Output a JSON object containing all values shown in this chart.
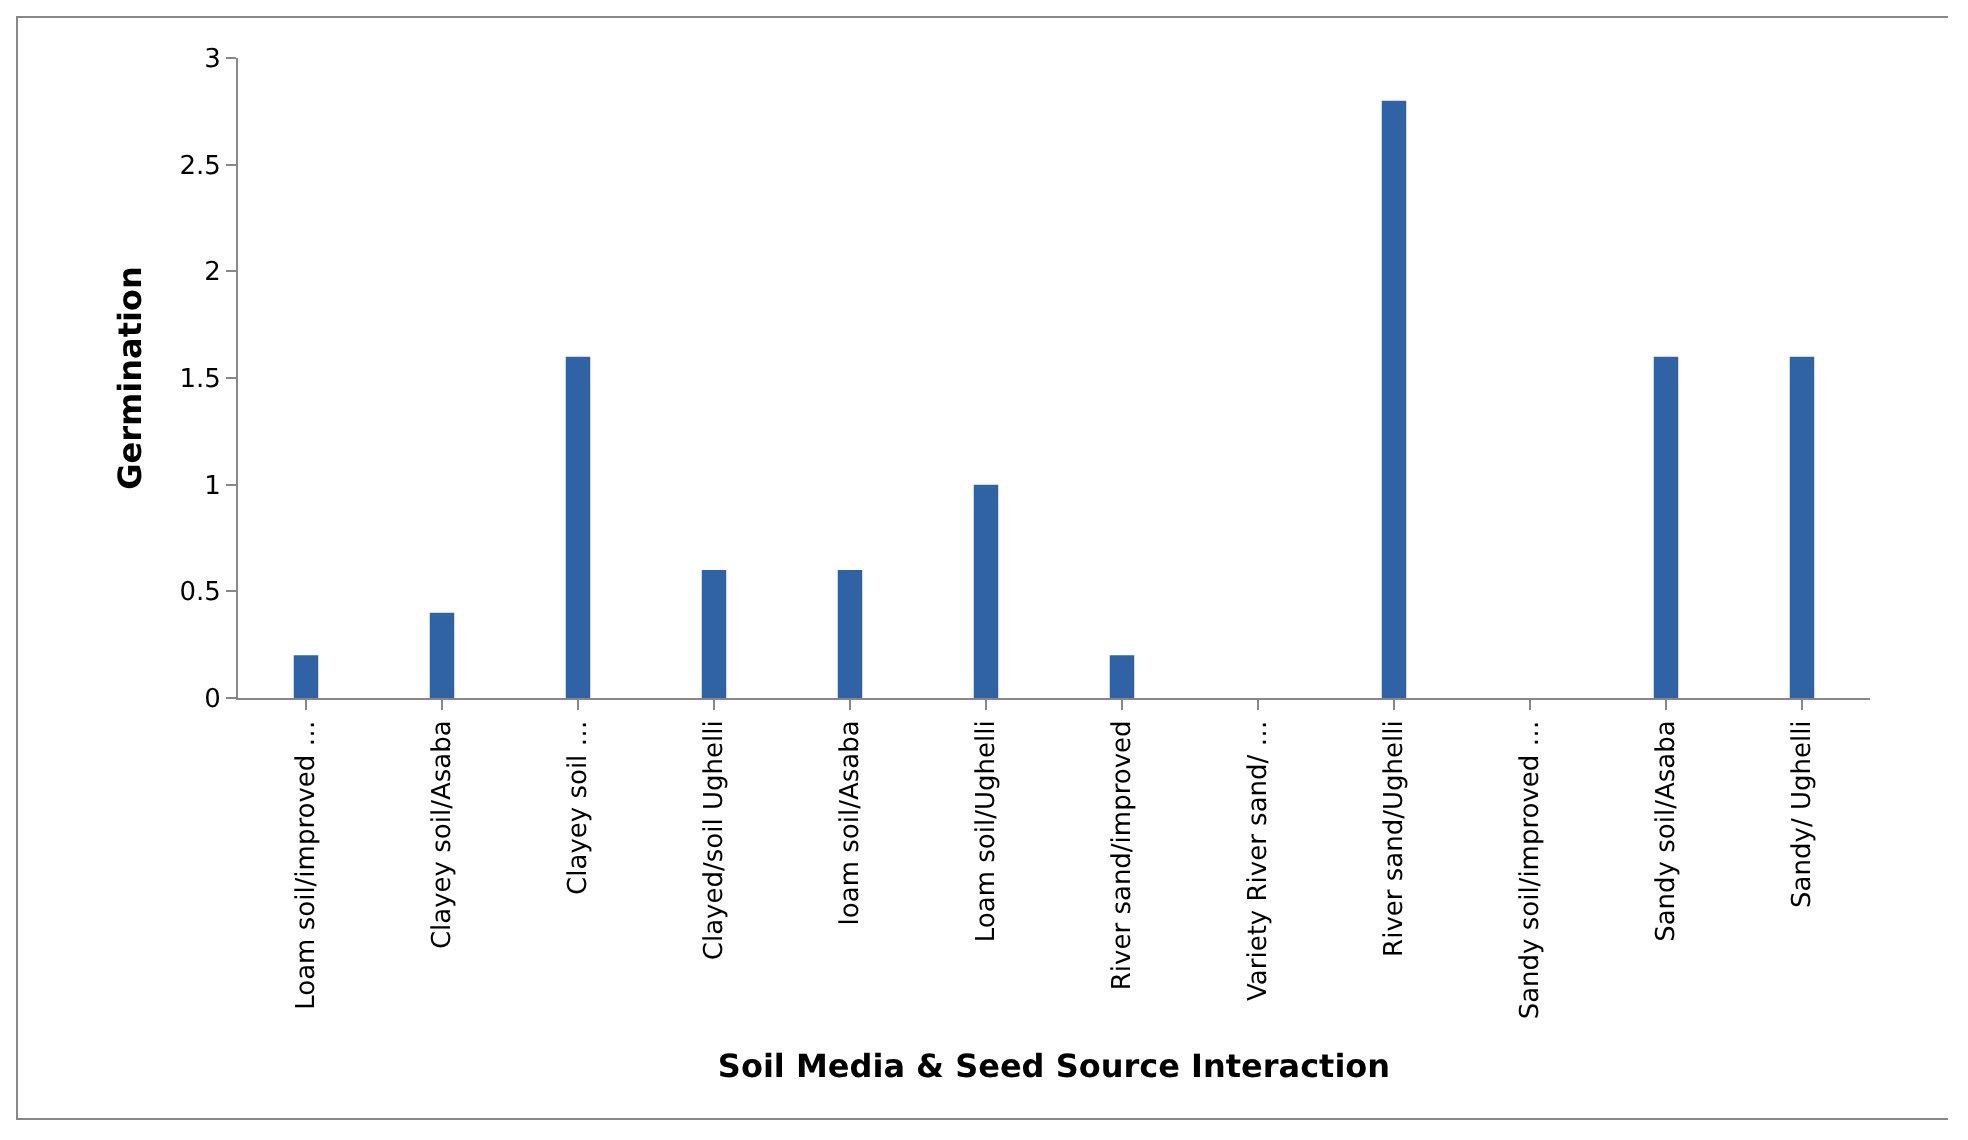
{
  "chart_data": {
    "type": "bar",
    "xlabel": "Soil Media & Seed Source Interaction",
    "ylabel": "Germination",
    "categories": [
      "Loam soil/improved …",
      "Clayey soil/Asaba",
      "Clayey soil …",
      "Clayed/soil Ughelli",
      "loam soil/Asaba",
      "Loam soil/Ughelli",
      "River sand/improved",
      "Variety River sand/ …",
      "River sand/Ughelli",
      "Sandy soil/improved …",
      "Sandy soil/Asaba",
      "Sandy/ Ughelli"
    ],
    "values": [
      0.2,
      0.4,
      1.6,
      0.6,
      0.6,
      1.0,
      0.2,
      0,
      2.8,
      0,
      1.6,
      1.6
    ],
    "color": "#2f63a6",
    "ylim": [
      0,
      3
    ],
    "yticks": [
      0,
      0.5,
      1,
      1.5,
      2,
      2.5,
      3
    ]
  }
}
